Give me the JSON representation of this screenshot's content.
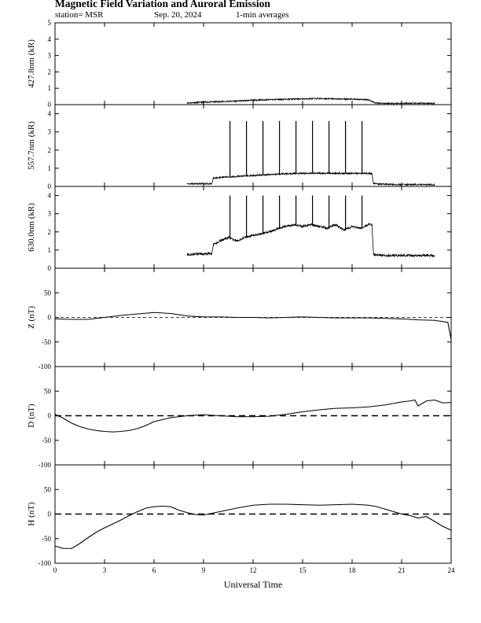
{
  "header": {
    "title": "Magnetic Field Variation and Auroral Emission",
    "station": "station= MSR",
    "date": "Sep. 20, 2024",
    "averaging": "1-min averages"
  },
  "chart_data": {
    "type": "line",
    "xlabel": "Universal Time",
    "xlim": [
      0,
      24
    ],
    "xticks": [
      0,
      3,
      6,
      9,
      12,
      15,
      18,
      21,
      24
    ],
    "panels": [
      {
        "ylabel": "427.8nm (kR)",
        "ylim": [
          0,
          5
        ],
        "yticks": [
          0,
          1,
          2,
          3,
          4,
          5
        ],
        "series": [
          {
            "noise": 0.04,
            "x": [
              8,
              9,
              10,
              11,
              12,
              13,
              14,
              15,
              16,
              17,
              18,
              19,
              19.2,
              19.4,
              20,
              21,
              22,
              23
            ],
            "y": [
              0.1,
              0.15,
              0.18,
              0.22,
              0.27,
              0.3,
              0.33,
              0.35,
              0.37,
              0.35,
              0.33,
              0.3,
              0.2,
              0.1,
              0.08,
              0.08,
              0.08,
              0.08
            ]
          }
        ]
      },
      {
        "ylabel": "557.7nm (kR)",
        "ylim": [
          0,
          4.5
        ],
        "yticks": [
          0,
          1,
          2,
          3,
          4
        ],
        "series": [
          {
            "noise": 0.04,
            "x": [
              8,
              9,
              9.5,
              9.6,
              10,
              11,
              12,
              13,
              14,
              15,
              16,
              17,
              18,
              19,
              19.2,
              19.3,
              20,
              21,
              22,
              23
            ],
            "y": [
              0.15,
              0.15,
              0.15,
              0.45,
              0.5,
              0.55,
              0.6,
              0.65,
              0.7,
              0.72,
              0.73,
              0.72,
              0.72,
              0.72,
              0.7,
              0.15,
              0.12,
              0.1,
              0.1,
              0.1
            ]
          }
        ],
        "spikes": {
          "x": [
            10.6,
            11.6,
            12.6,
            13.6,
            14.6,
            15.6,
            16.6,
            17.6,
            18.6
          ],
          "top": 3.6
        }
      },
      {
        "ylabel": "630.0nm (kR)",
        "ylim": [
          0,
          4.5
        ],
        "yticks": [
          0,
          1,
          2,
          3,
          4
        ],
        "series": [
          {
            "noise": 0.06,
            "x": [
              8,
              9,
              9.5,
              9.6,
              10,
              10.5,
              11,
              11.5,
              12,
              12.5,
              13,
              13.5,
              14,
              14.5,
              15,
              15.5,
              16,
              16.5,
              17,
              17.5,
              18,
              18.5,
              19,
              19.2,
              19.3,
              20,
              21,
              22,
              23
            ],
            "y": [
              0.75,
              0.8,
              0.8,
              1.3,
              1.5,
              1.7,
              1.5,
              1.7,
              1.8,
              1.9,
              2.0,
              2.2,
              2.3,
              2.4,
              2.3,
              2.4,
              2.3,
              2.2,
              2.4,
              2.1,
              2.3,
              2.2,
              2.4,
              2.4,
              0.75,
              0.7,
              0.7,
              0.7,
              0.7
            ]
          }
        ],
        "spikes": {
          "x": [
            10.6,
            11.6,
            12.6,
            13.6,
            14.6,
            15.6,
            16.6,
            17.6,
            18.6
          ],
          "top": 4.0
        }
      },
      {
        "ylabel": "Z (nT)",
        "ylim": [
          -100,
          100
        ],
        "yticks": [
          -100,
          -50,
          0,
          50
        ],
        "baseline_style": "thin-dashed",
        "series": [
          {
            "noise": 0,
            "x": [
              0,
              1,
              2,
              3,
              4,
              5,
              6,
              7,
              8,
              9,
              10,
              11,
              12,
              13,
              14,
              15,
              16,
              17,
              18,
              19,
              20,
              21,
              22,
              23,
              23.8,
              24
            ],
            "y": [
              -3,
              -4,
              -4,
              0,
              4,
              7,
              10,
              8,
              3,
              1,
              1,
              0,
              0,
              -1,
              0,
              1,
              0,
              -1,
              -1,
              -1,
              -2,
              -3,
              -5,
              -6,
              -10,
              -45
            ]
          }
        ]
      },
      {
        "ylabel": "D (nT)",
        "ylim": [
          -100,
          100
        ],
        "yticks": [
          -100,
          -50,
          0,
          50
        ],
        "baseline_style": "dashed",
        "series": [
          {
            "noise": 0,
            "x": [
              0,
              0.5,
              1,
              1.5,
              2,
              2.5,
              3,
              3.5,
              4,
              4.5,
              5,
              5.5,
              6,
              7,
              8,
              9,
              10,
              11,
              12,
              13,
              14,
              15,
              16,
              17,
              18,
              19,
              20,
              20.5,
              21,
              21.5,
              21.8,
              22,
              22.5,
              23,
              23.5,
              24
            ],
            "y": [
              3,
              -5,
              -15,
              -22,
              -27,
              -30,
              -32,
              -33,
              -32,
              -30,
              -26,
              -20,
              -12,
              -4,
              0,
              2,
              0,
              -2,
              -2,
              -1,
              3,
              8,
              12,
              15,
              16,
              18,
              22,
              25,
              28,
              30,
              32,
              20,
              30,
              32,
              26,
              27
            ]
          }
        ]
      },
      {
        "ylabel": "H (nT)",
        "ylim": [
          -100,
          100
        ],
        "yticks": [
          -100,
          -50,
          0,
          50
        ],
        "baseline_style": "dashed",
        "series": [
          {
            "noise": 0,
            "x": [
              0,
              0.5,
              1,
              1.5,
              2,
              2.5,
              3,
              3.5,
              4,
              4.5,
              5,
              5.5,
              6,
              6.5,
              7,
              7.5,
              8,
              8.5,
              9,
              10,
              11,
              12,
              13,
              14,
              15,
              16,
              17,
              18,
              19,
              19.5,
              20,
              20.5,
              21,
              21.5,
              22,
              22.5,
              23,
              23.5,
              24
            ],
            "y": [
              -65,
              -70,
              -70,
              -60,
              -48,
              -37,
              -28,
              -20,
              -12,
              -3,
              5,
              12,
              15,
              16,
              15,
              8,
              3,
              -1,
              -2,
              5,
              12,
              18,
              20,
              20,
              19,
              18,
              19,
              20,
              18,
              15,
              10,
              5,
              0,
              -3,
              -8,
              -5,
              -15,
              -25,
              -33
            ]
          }
        ]
      }
    ]
  }
}
